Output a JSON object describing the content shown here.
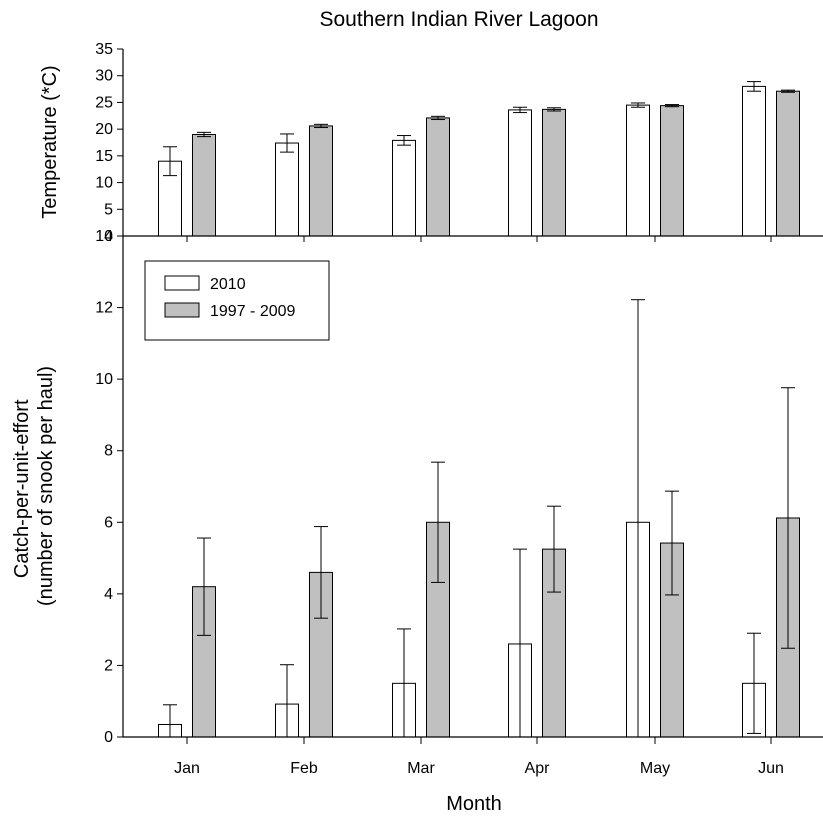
{
  "title": "Southern Indian River Lagoon",
  "xlabel": "Month",
  "categories": [
    "Jan",
    "Feb",
    "Mar",
    "Apr",
    "May",
    "Jun"
  ],
  "colors": {
    "series_2010": "#ffffff",
    "series_hist": "#c0c0c0",
    "stroke": "#000000"
  },
  "legend": {
    "position": "top-left",
    "items": [
      "2010",
      "1997 - 2009"
    ]
  },
  "chart_data": [
    {
      "type": "bar",
      "panel": "top",
      "ylabel": "Temperature (*C)",
      "ylim": [
        0,
        35
      ],
      "yticks": [
        0,
        5,
        10,
        15,
        20,
        25,
        30,
        35
      ],
      "ytick_labels": [
        "0",
        "5",
        "10",
        "15",
        "20",
        "25",
        "30",
        "35"
      ],
      "categories": [
        "Jan",
        "Feb",
        "Mar",
        "Apr",
        "May",
        "Jun"
      ],
      "series": [
        {
          "name": "2010",
          "values": [
            14.0,
            17.4,
            17.9,
            23.6,
            24.5,
            28.0
          ],
          "errors": [
            2.7,
            1.7,
            0.9,
            0.5,
            0.4,
            0.9
          ]
        },
        {
          "name": "1997 - 2009",
          "values": [
            19.0,
            20.6,
            22.1,
            23.7,
            24.4,
            27.1
          ],
          "errors": [
            0.4,
            0.3,
            0.3,
            0.3,
            0.2,
            0.2
          ]
        }
      ]
    },
    {
      "type": "bar",
      "panel": "bottom",
      "ylabel": "Catch-per-unit-effort",
      "ylabel2": "(number of snook per haul)",
      "ylim": [
        0,
        14
      ],
      "yticks": [
        0,
        2,
        4,
        6,
        8,
        10,
        12,
        14
      ],
      "ytick_labels": [
        "0",
        "2",
        "4",
        "6",
        "8",
        "10",
        "12",
        "14"
      ],
      "categories": [
        "Jan",
        "Feb",
        "Mar",
        "Apr",
        "May",
        "Jun"
      ],
      "series": [
        {
          "name": "2010",
          "values": [
            0.35,
            0.92,
            1.5,
            2.6,
            6.0,
            1.5
          ],
          "errors": [
            0.55,
            1.1,
            1.52,
            2.65,
            6.22,
            1.4
          ]
        },
        {
          "name": "1997 - 2009",
          "values": [
            4.2,
            4.6,
            6.0,
            5.25,
            5.42,
            6.12
          ],
          "errors": [
            1.36,
            1.28,
            1.68,
            1.2,
            1.45,
            3.64
          ]
        }
      ]
    }
  ]
}
